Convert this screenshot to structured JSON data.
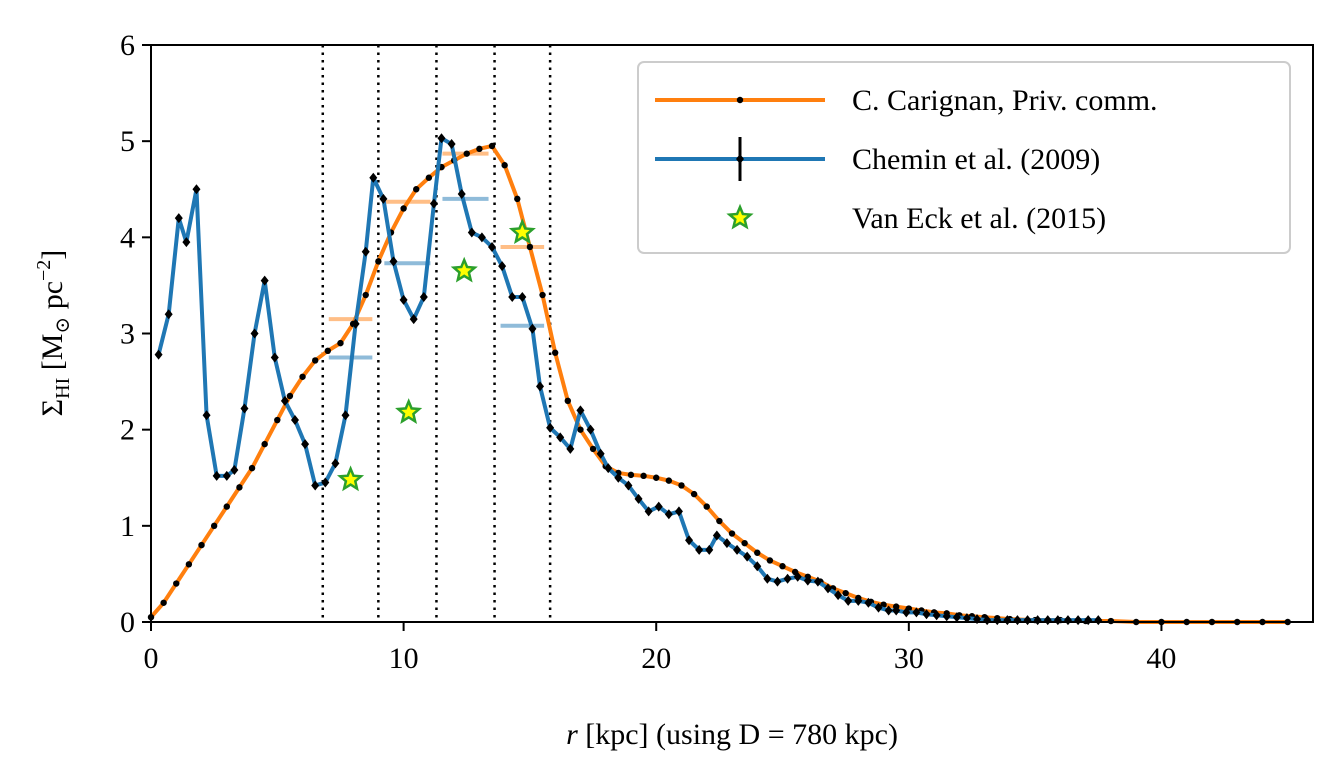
{
  "chart_data": {
    "type": "line",
    "xlabel": [
      "r",
      " [kpc] (using D = 780 kpc)"
    ],
    "ylabel": [
      "Σ",
      "HI",
      " [M",
      "⊙",
      " pc",
      "−2",
      "]"
    ],
    "xlim": [
      0,
      46
    ],
    "ylim": [
      0,
      6
    ],
    "xticks": [
      0,
      10,
      20,
      30,
      40
    ],
    "yticks": [
      0,
      1,
      2,
      3,
      4,
      5,
      6
    ],
    "legend": "upper right",
    "bin_edges": [
      6.8,
      9.0,
      11.3,
      13.6,
      15.8
    ],
    "vlines": true,
    "series": [
      {
        "name": "C. Carignan, Priv. comm.",
        "type": "line",
        "color": "#ff7f0e",
        "marker": "dot",
        "x": [
          0,
          0.5,
          1,
          1.5,
          2,
          2.5,
          3,
          3.5,
          4,
          4.5,
          5,
          5.5,
          6,
          6.5,
          7,
          7.5,
          8,
          8.5,
          9,
          9.5,
          10,
          10.5,
          11,
          11.5,
          12,
          12.5,
          13,
          13.5,
          14,
          14.5,
          15,
          15.5,
          16,
          16.5,
          17,
          17.5,
          18,
          18.5,
          19,
          19.5,
          20,
          20.5,
          21,
          21.5,
          22,
          22.5,
          23,
          23.5,
          24,
          24.5,
          25,
          25.5,
          26,
          26.5,
          27,
          27.5,
          28,
          28.5,
          29,
          29.5,
          30,
          30.5,
          31,
          31.5,
          32,
          32.5,
          33,
          33.5,
          34,
          35,
          36,
          37,
          38,
          39,
          40,
          41,
          42,
          43,
          44,
          45
        ],
        "values": [
          0.05,
          0.2,
          0.4,
          0.6,
          0.8,
          1.0,
          1.2,
          1.4,
          1.6,
          1.85,
          2.1,
          2.35,
          2.55,
          2.72,
          2.82,
          2.9,
          3.1,
          3.4,
          3.75,
          4.05,
          4.3,
          4.5,
          4.62,
          4.73,
          4.8,
          4.87,
          4.92,
          4.95,
          4.75,
          4.4,
          3.9,
          3.4,
          2.8,
          2.3,
          2.0,
          1.8,
          1.62,
          1.55,
          1.53,
          1.52,
          1.5,
          1.47,
          1.42,
          1.33,
          1.2,
          1.05,
          0.92,
          0.82,
          0.72,
          0.64,
          0.58,
          0.52,
          0.47,
          0.42,
          0.35,
          0.3,
          0.25,
          0.21,
          0.18,
          0.16,
          0.14,
          0.12,
          0.1,
          0.09,
          0.07,
          0.06,
          0.05,
          0.04,
          0.03,
          0.02,
          0.02,
          0.01,
          0.01,
          0,
          0,
          0,
          0,
          0,
          0,
          0
        ]
      },
      {
        "name": "Chemin et al. (2009)",
        "type": "line",
        "color": "#1f77b4",
        "marker": "diamond",
        "errorbar": true,
        "x": [
          0.3,
          0.7,
          1.1,
          1.4,
          1.8,
          2.2,
          2.6,
          3.0,
          3.3,
          3.7,
          4.1,
          4.5,
          4.9,
          5.3,
          5.7,
          6.1,
          6.5,
          6.9,
          7.3,
          7.7,
          8.1,
          8.5,
          8.8,
          9.2,
          9.6,
          10.0,
          10.4,
          10.8,
          11.2,
          11.5,
          11.9,
          12.3,
          12.7,
          13.1,
          13.5,
          13.9,
          14.3,
          14.7,
          15.1,
          15.4,
          15.8,
          16.2,
          16.6,
          17.0,
          17.4,
          17.8,
          18.1,
          18.5,
          18.9,
          19.3,
          19.7,
          20.1,
          20.5,
          20.9,
          21.3,
          21.7,
          22.1,
          22.4,
          22.8,
          23.2,
          23.6,
          24.0,
          24.4,
          24.8,
          25.2,
          25.6,
          26.0,
          26.4,
          26.8,
          27.2,
          27.6,
          28.0,
          28.4,
          28.8,
          29.2,
          29.5,
          29.9,
          30.3,
          30.7,
          31.1,
          31.5,
          31.9,
          32.3,
          32.7,
          33.1,
          33.5,
          33.9,
          34.3,
          34.7,
          35.1,
          35.5,
          35.9,
          36.3,
          36.7,
          37.1,
          37.5
        ],
        "values": [
          2.78,
          3.2,
          4.2,
          3.95,
          4.5,
          2.15,
          1.52,
          1.52,
          1.58,
          2.22,
          3.0,
          3.55,
          2.75,
          2.3,
          2.1,
          1.85,
          1.42,
          1.45,
          1.65,
          2.15,
          3.1,
          3.85,
          4.62,
          4.4,
          3.75,
          3.35,
          3.15,
          3.38,
          4.35,
          5.03,
          4.97,
          4.45,
          4.05,
          4.0,
          3.9,
          3.7,
          3.38,
          3.38,
          3.05,
          2.45,
          2.02,
          1.92,
          1.8,
          2.2,
          2.0,
          1.75,
          1.6,
          1.5,
          1.42,
          1.28,
          1.15,
          1.2,
          1.12,
          1.15,
          0.85,
          0.75,
          0.75,
          0.9,
          0.82,
          0.75,
          0.68,
          0.58,
          0.45,
          0.42,
          0.45,
          0.47,
          0.43,
          0.42,
          0.35,
          0.28,
          0.22,
          0.22,
          0.2,
          0.15,
          0.12,
          0.12,
          0.1,
          0.1,
          0.08,
          0.07,
          0.06,
          0.05,
          0.04,
          0.03,
          0.02,
          0.02,
          0.02,
          0.02,
          0.02,
          0.02,
          0.02,
          0.02,
          0.02,
          0.02,
          0.02,
          0.02
        ]
      },
      {
        "name": "Van Eck et al. (2015)",
        "type": "scatter",
        "color": "#2ca02c",
        "fill": "#ffff00",
        "marker": "star",
        "x": [
          7.9,
          10.2,
          12.4,
          14.7
        ],
        "values": [
          1.48,
          2.18,
          3.65,
          4.05
        ]
      }
    ],
    "bands": [
      {
        "color": "#ffbe86",
        "values": [
          3.15,
          4.37,
          4.87,
          3.9
        ]
      },
      {
        "color": "#8fbbd9",
        "values": [
          2.75,
          3.73,
          4.4,
          3.08
        ]
      }
    ]
  }
}
